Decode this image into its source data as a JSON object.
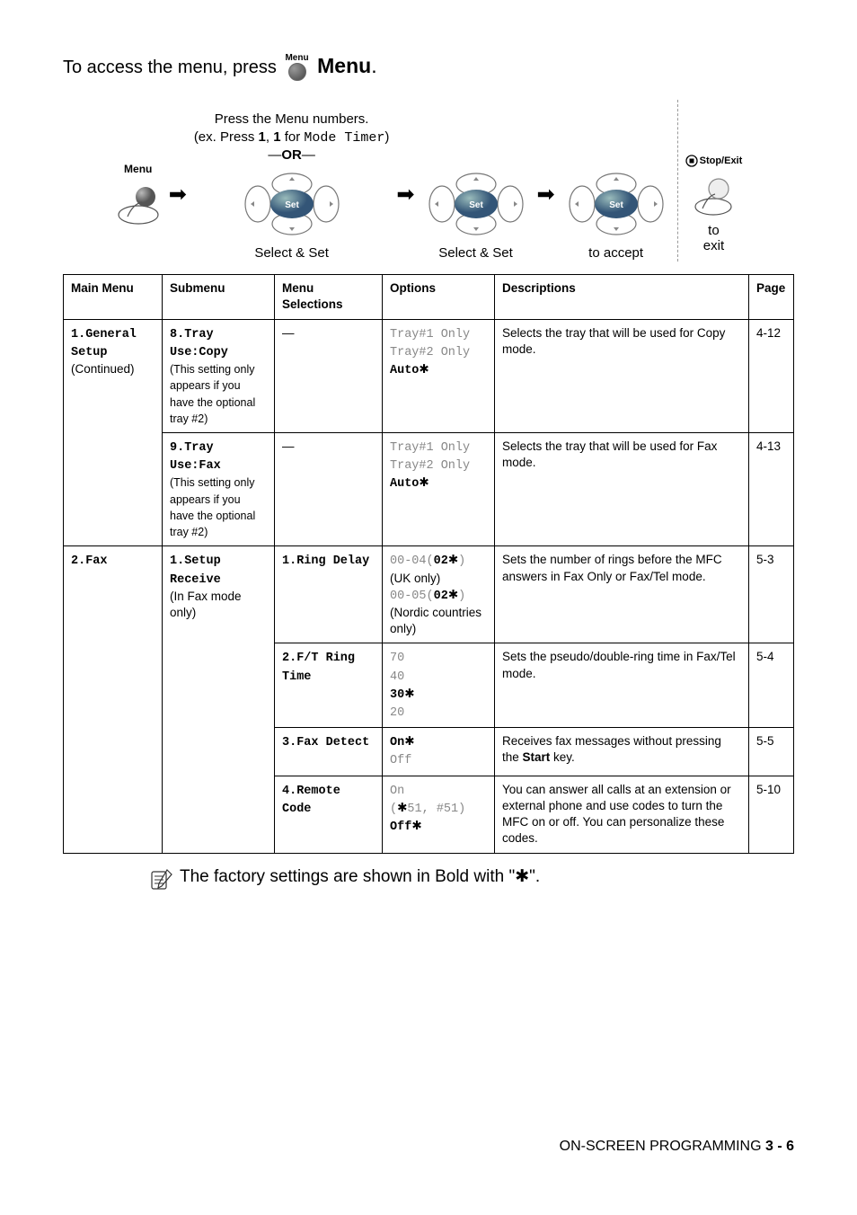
{
  "access_line_prefix": "To access the menu, press",
  "access_line_menu_icon_label": "Menu",
  "access_line_menu_word": "Menu",
  "diagram": {
    "press_numbers": "Press the Menu numbers.",
    "example_prefix": "(ex. Press ",
    "example_1": "1",
    "example_sep": ", ",
    "example_2": "1",
    "example_for": " for ",
    "example_mono": "Mode Timer",
    "example_close": ")",
    "or_text": "OR",
    "menu_label": "Menu",
    "select_set": "Select & Set",
    "to_accept": "to accept",
    "stop_exit": "Stop/Exit",
    "to": "to",
    "exit": "exit"
  },
  "table": {
    "headers": {
      "main": "Main Menu",
      "sub": "Submenu",
      "sel": "Menu Selections",
      "opt": "Options",
      "desc": "Descriptions",
      "page": "Page"
    },
    "rows": [
      {
        "main_bold": "1.General Setup",
        "main_plain": "(Continued)",
        "sub_bold": "8.Tray Use:Copy",
        "sub_plain": "(This setting only appears if you have the optional tray #2)",
        "sel": "—",
        "opt_lines": [
          {
            "t": "Tray#1 Only",
            "gray": true,
            "mono": true
          },
          {
            "t": "Tray#2 Only",
            "gray": true,
            "mono": true
          },
          {
            "t": "Auto",
            "boldmono": true,
            "star": true
          }
        ],
        "desc": "Selects the tray that will be used for Copy mode.",
        "page": "4-12",
        "main_rowspan": 2
      },
      {
        "sub_bold": "9.Tray Use:Fax",
        "sub_plain": "(This setting only appears if you have the optional tray #2)",
        "sel": "—",
        "opt_lines": [
          {
            "t": "Tray#1 Only",
            "gray": true,
            "mono": true
          },
          {
            "t": "Tray#2 Only",
            "gray": true,
            "mono": true
          },
          {
            "t": "Auto",
            "boldmono": true,
            "star": true
          }
        ],
        "desc": "Selects the tray that will be used for Fax mode.",
        "page": "4-13"
      },
      {
        "main_bold": "2.Fax",
        "main_rowspan": 4,
        "sub_bold": "1.Setup Receive",
        "sub_plain": "(In Fax mode only)",
        "sub_rowspan": 4,
        "sel_bold": "1.Ring Delay",
        "opt_html": "ring_delay",
        "desc": "Sets the number of rings before the MFC answers in Fax Only or Fax/Tel mode.",
        "page": "5-3"
      },
      {
        "sel_bold": "2.F/T Ring Time",
        "opt_lines": [
          {
            "t": "70",
            "gray": true,
            "mono": true
          },
          {
            "t": "40",
            "gray": true,
            "mono": true
          },
          {
            "t": "30",
            "boldmono": true,
            "star": true
          },
          {
            "t": "20",
            "gray": true,
            "mono": true
          }
        ],
        "desc": "Sets the pseudo/double-ring time in Fax/Tel mode.",
        "page": "5-4"
      },
      {
        "sel_bold": "3.Fax Detect",
        "opt_lines": [
          {
            "t": "On",
            "boldmono": true,
            "star": true
          },
          {
            "t": "Off",
            "gray": true,
            "mono": true
          }
        ],
        "desc_html": "fax_detect",
        "page": "5-5"
      },
      {
        "sel_bold": "4.Remote Code",
        "opt_html": "remote_code",
        "desc": "You can answer all calls at an extension or external phone and use codes to turn the MFC on or off. You can personalize these codes.",
        "page": "5-10"
      }
    ],
    "fax_detect_desc": {
      "pre": "Receives fax messages without pressing the ",
      "bold": "Start",
      "post": " key."
    },
    "ring_delay_opt": {
      "l1a": "00-04(",
      "l1b": "02",
      "l1c": ")",
      "l2": "(UK only)",
      "l3a": "00-05(",
      "l3b": "02",
      "l3c": ")",
      "l4": "(Nordic countries only)"
    },
    "remote_code_opt": {
      "l1": "On",
      "l2": "( 51, #51)",
      "l3": "Off"
    }
  },
  "note": "The factory settings are shown in Bold with \"",
  "note_end": "\".",
  "footer_text": "ON-SCREEN PROGRAMMING   ",
  "footer_page": "3 - 6"
}
